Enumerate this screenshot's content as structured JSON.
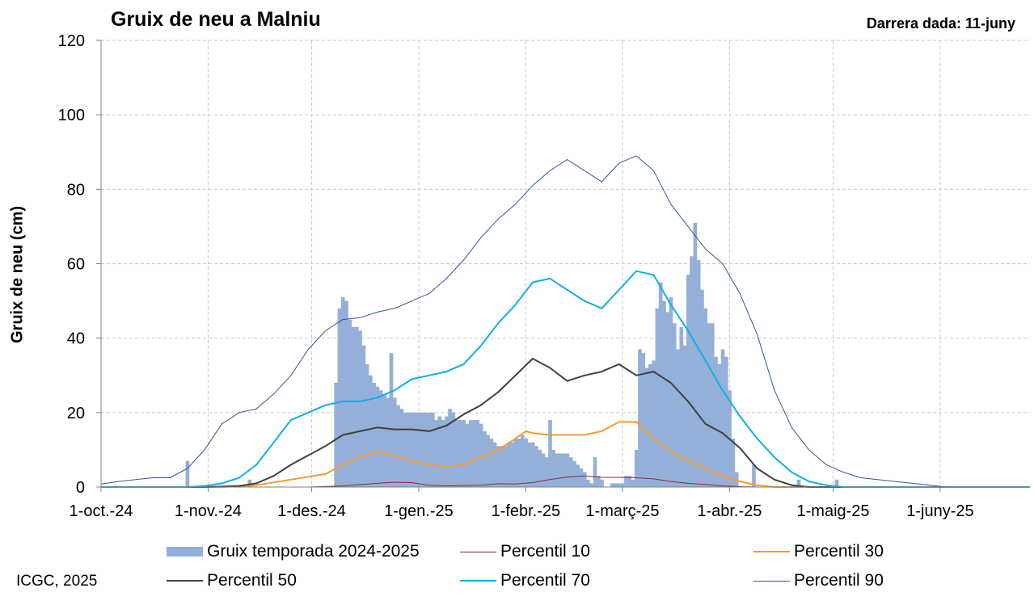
{
  "header": {
    "title": "Gruix de neu a Malniu",
    "last_data": "Darrera dada: 11-juny"
  },
  "footer": {
    "credit": "ICGC, 2025"
  },
  "colors": {
    "bars": "#94b0d8",
    "p10": "#8b2a3e",
    "p30": "#f59a2e",
    "p50": "#404040",
    "p70": "#12aee8",
    "p90": "#35558f",
    "grid": "#c8c8c8"
  },
  "chart_data": {
    "type": "bar",
    "title": "Gruix de neu a Malniu",
    "xlabel": "",
    "ylabel": "Gruix de neu (cm)",
    "ylim": [
      0,
      120
    ],
    "yticks": [
      0,
      20,
      40,
      60,
      80,
      100,
      120
    ],
    "xlim": [
      0,
      269
    ],
    "x_ticks": [
      {
        "day": 0,
        "label": "1-oct.-24"
      },
      {
        "day": 31,
        "label": "1-nov.-24"
      },
      {
        "day": 61,
        "label": "1-des.-24"
      },
      {
        "day": 92,
        "label": "1-gen.-25"
      },
      {
        "day": 123,
        "label": "1-febr.-25"
      },
      {
        "day": 151,
        "label": "1-març-25"
      },
      {
        "day": 182,
        "label": "1-abr.-25"
      },
      {
        "day": 212,
        "label": "1-maig-25"
      },
      {
        "day": 243,
        "label": "1-juny-25"
      }
    ],
    "grid": true,
    "legend_position": "bottom",
    "bars": {
      "name": "Gruix temporada 2024-2025",
      "values": [
        [
          25,
          7
        ],
        [
          43,
          2
        ],
        [
          68,
          28
        ],
        [
          69,
          48
        ],
        [
          70,
          51
        ],
        [
          71,
          50
        ],
        [
          72,
          45
        ],
        [
          73,
          43
        ],
        [
          74,
          43
        ],
        [
          75,
          42
        ],
        [
          76,
          38
        ],
        [
          77,
          33
        ],
        [
          78,
          30
        ],
        [
          79,
          28
        ],
        [
          80,
          27
        ],
        [
          81,
          26
        ],
        [
          82,
          25
        ],
        [
          83,
          24
        ],
        [
          84,
          36
        ],
        [
          85,
          24
        ],
        [
          86,
          22
        ],
        [
          87,
          21
        ],
        [
          88,
          20
        ],
        [
          89,
          20
        ],
        [
          90,
          20
        ],
        [
          91,
          20
        ],
        [
          92,
          20
        ],
        [
          93,
          20
        ],
        [
          94,
          20
        ],
        [
          95,
          20
        ],
        [
          96,
          20
        ],
        [
          97,
          18
        ],
        [
          98,
          19
        ],
        [
          99,
          18
        ],
        [
          100,
          19
        ],
        [
          101,
          21
        ],
        [
          102,
          20
        ],
        [
          103,
          18
        ],
        [
          104,
          18
        ],
        [
          105,
          18
        ],
        [
          106,
          17
        ],
        [
          107,
          18
        ],
        [
          108,
          18
        ],
        [
          109,
          18
        ],
        [
          110,
          17
        ],
        [
          111,
          15
        ],
        [
          112,
          14
        ],
        [
          113,
          13
        ],
        [
          114,
          12
        ],
        [
          115,
          11
        ],
        [
          116,
          11
        ],
        [
          117,
          11
        ],
        [
          118,
          12
        ],
        [
          119,
          12
        ],
        [
          120,
          13
        ],
        [
          121,
          13
        ],
        [
          122,
          14
        ],
        [
          123,
          13
        ],
        [
          124,
          12
        ],
        [
          125,
          12
        ],
        [
          126,
          11
        ],
        [
          127,
          10
        ],
        [
          128,
          9
        ],
        [
          129,
          8
        ],
        [
          130,
          18
        ],
        [
          131,
          10
        ],
        [
          132,
          9
        ],
        [
          133,
          9
        ],
        [
          134,
          9
        ],
        [
          135,
          9
        ],
        [
          136,
          8
        ],
        [
          137,
          7
        ],
        [
          138,
          6
        ],
        [
          139,
          5
        ],
        [
          140,
          4
        ],
        [
          141,
          2
        ],
        [
          142,
          1
        ],
        [
          143,
          8
        ],
        [
          144,
          3
        ],
        [
          145,
          2
        ],
        [
          148,
          1
        ],
        [
          149,
          1
        ],
        [
          150,
          1
        ],
        [
          151,
          1
        ],
        [
          152,
          3
        ],
        [
          153,
          3
        ],
        [
          154,
          2
        ],
        [
          155,
          10
        ],
        [
          156,
          37
        ],
        [
          157,
          36
        ],
        [
          158,
          32
        ],
        [
          159,
          33
        ],
        [
          160,
          34
        ],
        [
          161,
          48
        ],
        [
          162,
          55
        ],
        [
          163,
          50
        ],
        [
          164,
          47
        ],
        [
          165,
          51
        ],
        [
          166,
          44
        ],
        [
          167,
          37
        ],
        [
          168,
          43
        ],
        [
          169,
          38
        ],
        [
          170,
          57
        ],
        [
          171,
          62
        ],
        [
          172,
          71
        ],
        [
          173,
          61
        ],
        [
          174,
          53
        ],
        [
          175,
          48
        ],
        [
          176,
          44
        ],
        [
          177,
          44
        ],
        [
          178,
          35
        ],
        [
          179,
          33
        ],
        [
          180,
          37
        ],
        [
          181,
          35
        ],
        [
          182,
          26
        ],
        [
          183,
          13
        ],
        [
          184,
          4
        ],
        [
          189,
          6
        ],
        [
          202,
          2
        ],
        [
          213,
          2
        ]
      ]
    },
    "series": [
      {
        "name": "Percentil 10",
        "color": "#8b2a3e",
        "width": 1,
        "points": [
          [
            0,
            0
          ],
          [
            60,
            0
          ],
          [
            70,
            0.3
          ],
          [
            80,
            1
          ],
          [
            85,
            1.3
          ],
          [
            90,
            1.2
          ],
          [
            95,
            0.5
          ],
          [
            100,
            0.3
          ],
          [
            110,
            0.5
          ],
          [
            115,
            0.9
          ],
          [
            120,
            0.8
          ],
          [
            125,
            1.2
          ],
          [
            130,
            2
          ],
          [
            135,
            2.7
          ],
          [
            140,
            3
          ],
          [
            145,
            2.6
          ],
          [
            150,
            2.6
          ],
          [
            155,
            2.5
          ],
          [
            160,
            2.2
          ],
          [
            165,
            1.5
          ],
          [
            170,
            1
          ],
          [
            175,
            0.7
          ],
          [
            180,
            0.3
          ],
          [
            185,
            0.1
          ],
          [
            190,
            0
          ],
          [
            269,
            0
          ]
        ]
      },
      {
        "name": "Percentil 30",
        "color": "#f59a2e",
        "width": 2,
        "points": [
          [
            0,
            0
          ],
          [
            35,
            0
          ],
          [
            45,
            0.5
          ],
          [
            55,
            2
          ],
          [
            65,
            3.5
          ],
          [
            70,
            6
          ],
          [
            75,
            8
          ],
          [
            80,
            9.5
          ],
          [
            85,
            8.5
          ],
          [
            90,
            7
          ],
          [
            95,
            6
          ],
          [
            100,
            5.5
          ],
          [
            105,
            6
          ],
          [
            110,
            8
          ],
          [
            115,
            10
          ],
          [
            120,
            13
          ],
          [
            123,
            15
          ],
          [
            125,
            14.5
          ],
          [
            130,
            14
          ],
          [
            135,
            14
          ],
          [
            140,
            14
          ],
          [
            145,
            15
          ],
          [
            150,
            17.5
          ],
          [
            155,
            17.5
          ],
          [
            160,
            13
          ],
          [
            165,
            9.5
          ],
          [
            170,
            7
          ],
          [
            175,
            5
          ],
          [
            180,
            3
          ],
          [
            185,
            1.5
          ],
          [
            190,
            0.5
          ],
          [
            195,
            0
          ],
          [
            269,
            0
          ]
        ]
      },
      {
        "name": "Percentil 50",
        "color": "#404040",
        "width": 2,
        "points": [
          [
            0,
            0
          ],
          [
            30,
            0
          ],
          [
            40,
            0.3
          ],
          [
            45,
            1
          ],
          [
            50,
            3
          ],
          [
            55,
            6
          ],
          [
            60,
            8.5
          ],
          [
            65,
            11
          ],
          [
            70,
            14
          ],
          [
            75,
            15
          ],
          [
            80,
            16
          ],
          [
            85,
            15.5
          ],
          [
            90,
            15.5
          ],
          [
            95,
            15
          ],
          [
            100,
            16.5
          ],
          [
            105,
            19.5
          ],
          [
            110,
            22
          ],
          [
            115,
            25.5
          ],
          [
            120,
            30
          ],
          [
            125,
            34.5
          ],
          [
            130,
            32
          ],
          [
            135,
            28.5
          ],
          [
            140,
            30
          ],
          [
            145,
            31
          ],
          [
            150,
            33
          ],
          [
            155,
            30
          ],
          [
            160,
            31
          ],
          [
            165,
            28
          ],
          [
            170,
            23
          ],
          [
            175,
            17
          ],
          [
            180,
            14.5
          ],
          [
            185,
            10.5
          ],
          [
            190,
            5
          ],
          [
            195,
            2
          ],
          [
            200,
            0.5
          ],
          [
            205,
            0
          ],
          [
            269,
            0
          ]
        ]
      },
      {
        "name": "Percentil 70",
        "color": "#12aee8",
        "width": 2,
        "points": [
          [
            0,
            0
          ],
          [
            25,
            0
          ],
          [
            30,
            0.3
          ],
          [
            35,
            1
          ],
          [
            40,
            2.5
          ],
          [
            45,
            6
          ],
          [
            50,
            12
          ],
          [
            55,
            18
          ],
          [
            60,
            20
          ],
          [
            65,
            22
          ],
          [
            70,
            23
          ],
          [
            75,
            23
          ],
          [
            80,
            24
          ],
          [
            85,
            26
          ],
          [
            90,
            29
          ],
          [
            95,
            30
          ],
          [
            100,
            31
          ],
          [
            105,
            33
          ],
          [
            110,
            38
          ],
          [
            115,
            44
          ],
          [
            120,
            49
          ],
          [
            125,
            55
          ],
          [
            130,
            56
          ],
          [
            135,
            53
          ],
          [
            140,
            50
          ],
          [
            145,
            48
          ],
          [
            150,
            53
          ],
          [
            155,
            58
          ],
          [
            160,
            57
          ],
          [
            165,
            49
          ],
          [
            170,
            42
          ],
          [
            175,
            34
          ],
          [
            180,
            26
          ],
          [
            185,
            19
          ],
          [
            190,
            13
          ],
          [
            195,
            8
          ],
          [
            200,
            4
          ],
          [
            205,
            1.5
          ],
          [
            210,
            0.5
          ],
          [
            215,
            0
          ],
          [
            269,
            0
          ]
        ]
      },
      {
        "name": "Percentil 90",
        "color": "#35558f",
        "width": 1,
        "points": [
          [
            0,
            0.8
          ],
          [
            5,
            1.5
          ],
          [
            10,
            2
          ],
          [
            15,
            2.5
          ],
          [
            20,
            2.5
          ],
          [
            25,
            5
          ],
          [
            30,
            10
          ],
          [
            35,
            17
          ],
          [
            40,
            20
          ],
          [
            45,
            21
          ],
          [
            50,
            25
          ],
          [
            55,
            30
          ],
          [
            60,
            37
          ],
          [
            65,
            42
          ],
          [
            70,
            45
          ],
          [
            75,
            45.5
          ],
          [
            80,
            47
          ],
          [
            85,
            48
          ],
          [
            90,
            50
          ],
          [
            95,
            52
          ],
          [
            100,
            56
          ],
          [
            105,
            61
          ],
          [
            110,
            67
          ],
          [
            115,
            72
          ],
          [
            120,
            76
          ],
          [
            125,
            81
          ],
          [
            130,
            85
          ],
          [
            135,
            88
          ],
          [
            140,
            85
          ],
          [
            145,
            82
          ],
          [
            150,
            87
          ],
          [
            155,
            89
          ],
          [
            160,
            85
          ],
          [
            165,
            76
          ],
          [
            170,
            70
          ],
          [
            175,
            64
          ],
          [
            180,
            60
          ],
          [
            185,
            52
          ],
          [
            190,
            41
          ],
          [
            195,
            26
          ],
          [
            200,
            16
          ],
          [
            205,
            10
          ],
          [
            210,
            6
          ],
          [
            215,
            4
          ],
          [
            220,
            2.5
          ],
          [
            230,
            1.5
          ],
          [
            240,
            0.5
          ],
          [
            245,
            0
          ],
          [
            269,
            0
          ]
        ]
      }
    ]
  }
}
